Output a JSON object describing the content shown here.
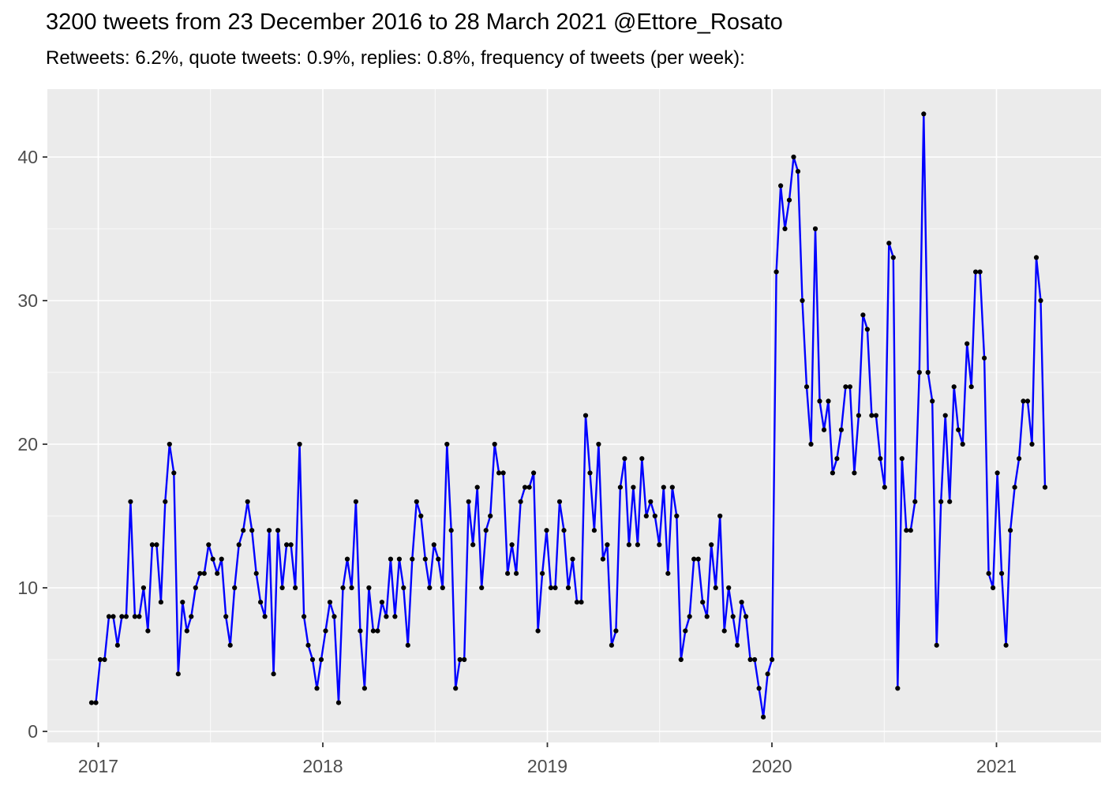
{
  "header": {
    "title": "3200 tweets from 23 December 2016 to 28 March 2021 @Ettore_Rosato",
    "subtitle": "Retweets: 6.2%, quote tweets: 0.9%, replies: 0.8%, frequency of tweets (per week):"
  },
  "chart_data": {
    "type": "line",
    "title": "3200 tweets from 23 December 2016 to 28 March 2021 @Ettore_Rosato",
    "subtitle": "Retweets: 6.2%, quote tweets: 0.9%, replies: 0.8%, frequency of tweets (per week):",
    "xlabel": "",
    "ylabel": "",
    "x_unit": "week",
    "x_start": "23 December 2016",
    "x_end": "28 March 2021",
    "x_tick_labels": [
      "2017",
      "2018",
      "2019",
      "2020",
      "2021"
    ],
    "y_tick_labels": [
      "0",
      "10",
      "20",
      "30",
      "40"
    ],
    "y_ticks": [
      0,
      10,
      20,
      30,
      40
    ],
    "y_minor_ticks": [
      5,
      15,
      25,
      35
    ],
    "ylim": [
      0,
      45
    ],
    "grid": true,
    "legend": "none",
    "panel_background": "#EBEBEB",
    "grid_color": "#FFFFFF",
    "axis_text_color": "#4D4D4D",
    "tick_mark_color": "#333333",
    "series": [
      {
        "name": "tweets per week",
        "line_color": "#0000FF",
        "point_color": "#000000",
        "values": [
          2,
          2,
          5,
          5,
          8,
          8,
          6,
          8,
          8,
          16,
          8,
          8,
          10,
          7,
          13,
          13,
          9,
          16,
          20,
          18,
          4,
          9,
          7,
          8,
          10,
          11,
          11,
          13,
          12,
          11,
          12,
          8,
          6,
          10,
          13,
          14,
          16,
          14,
          11,
          9,
          8,
          14,
          4,
          14,
          10,
          13,
          13,
          10,
          20,
          8,
          6,
          5,
          3,
          5,
          7,
          9,
          8,
          2,
          10,
          12,
          10,
          16,
          7,
          3,
          10,
          7,
          7,
          9,
          8,
          12,
          8,
          12,
          10,
          6,
          12,
          16,
          15,
          12,
          10,
          13,
          12,
          10,
          20,
          14,
          3,
          5,
          5,
          16,
          13,
          17,
          10,
          14,
          15,
          20,
          18,
          18,
          11,
          13,
          11,
          16,
          17,
          17,
          18,
          7,
          11,
          14,
          10,
          10,
          16,
          14,
          10,
          12,
          9,
          9,
          22,
          18,
          14,
          20,
          12,
          13,
          6,
          7,
          17,
          19,
          13,
          17,
          13,
          19,
          15,
          16,
          15,
          13,
          17,
          11,
          17,
          15,
          5,
          7,
          8,
          12,
          12,
          9,
          8,
          13,
          10,
          15,
          7,
          10,
          8,
          6,
          9,
          8,
          5,
          5,
          3,
          1,
          4,
          5,
          32,
          38,
          35,
          37,
          40,
          39,
          30,
          24,
          20,
          35,
          23,
          21,
          23,
          18,
          19,
          21,
          24,
          24,
          18,
          22,
          29,
          28,
          22,
          22,
          19,
          17,
          34,
          33,
          3,
          19,
          14,
          14,
          16,
          25,
          43,
          25,
          23,
          6,
          16,
          22,
          16,
          24,
          21,
          20,
          27,
          24,
          32,
          32,
          26,
          11,
          10,
          18,
          11,
          6,
          14,
          17,
          19,
          23,
          23,
          20,
          33,
          30,
          17
        ]
      }
    ]
  }
}
